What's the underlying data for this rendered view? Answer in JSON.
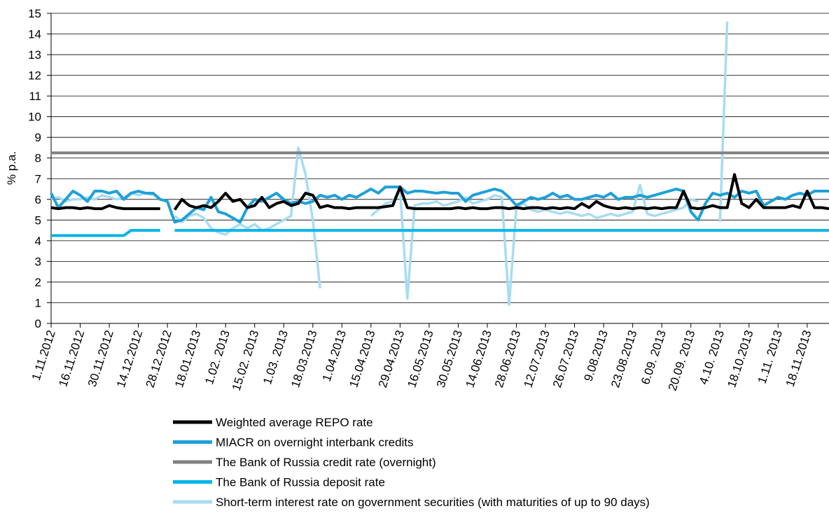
{
  "chart_data": {
    "type": "line",
    "ylabel": "% p.a.",
    "categories": [
      "1.11.2012",
      null,
      null,
      null,
      "16.11.2012",
      null,
      null,
      null,
      "30.11.2012",
      null,
      null,
      null,
      "14.12.2012",
      null,
      null,
      null,
      "28.12.2012",
      null,
      null,
      null,
      "18.01.2013",
      null,
      null,
      null,
      "1.02. 2013",
      null,
      null,
      null,
      "15.02. 2013",
      null,
      null,
      null,
      "1.03. 2013",
      null,
      null,
      null,
      "18.03.2013",
      null,
      null,
      null,
      "1.04.2013",
      null,
      null,
      null,
      "15.04.2013",
      null,
      null,
      null,
      "29.04.2013",
      null,
      null,
      null,
      "16.05.2013",
      null,
      null,
      null,
      "30.05.2013",
      null,
      null,
      null,
      "14.06.2013",
      null,
      null,
      null,
      "28.06.2013",
      null,
      null,
      null,
      "12.07.2013",
      null,
      null,
      null,
      "26.07.2013",
      null,
      null,
      null,
      "9.08.2013",
      null,
      null,
      null,
      "23.08.2013",
      null,
      null,
      null,
      "6.09. 2013",
      null,
      null,
      null,
      "20.09. 2013",
      null,
      null,
      null,
      "4.10. 2013",
      null,
      null,
      null,
      "18.10.2013",
      null,
      null,
      null,
      "1.11. 2013",
      null,
      null,
      null,
      "18.11.2013",
      null,
      null,
      null
    ],
    "series": [
      {
        "name": "Weighted average REPO rate",
        "color": "#000000",
        "values": [
          5.6,
          5.55,
          5.6,
          5.6,
          5.55,
          5.6,
          5.55,
          5.55,
          5.7,
          5.6,
          5.55,
          5.55,
          5.55,
          5.55,
          5.55,
          5.55,
          null,
          5.5,
          6.0,
          5.7,
          5.6,
          5.7,
          5.6,
          5.9,
          6.3,
          5.9,
          6.0,
          5.6,
          5.7,
          6.1,
          5.6,
          5.8,
          5.9,
          5.7,
          5.8,
          6.3,
          6.2,
          5.6,
          5.7,
          5.6,
          5.6,
          5.55,
          5.6,
          5.6,
          5.6,
          5.6,
          5.65,
          5.7,
          6.6,
          5.6,
          5.55,
          5.55,
          5.55,
          5.55,
          5.55,
          5.55,
          5.6,
          5.55,
          5.6,
          5.55,
          5.55,
          5.6,
          5.6,
          5.55,
          5.6,
          5.55,
          5.6,
          5.6,
          5.55,
          5.6,
          5.55,
          5.6,
          5.55,
          5.8,
          5.6,
          5.9,
          5.7,
          5.6,
          5.55,
          5.6,
          5.55,
          5.6,
          5.55,
          5.6,
          5.55,
          5.6,
          5.6,
          6.4,
          5.6,
          5.55,
          5.6,
          5.7,
          5.6,
          5.6,
          7.2,
          5.8,
          5.6,
          6.0,
          5.6,
          5.6,
          5.6,
          5.6,
          5.7,
          5.6,
          6.4,
          5.6,
          5.6,
          5.55
        ]
      },
      {
        "name": "MIACR on overnight interbank credits",
        "color": "#1fa0d8",
        "values": [
          6.3,
          5.6,
          6.0,
          6.4,
          6.2,
          5.9,
          6.4,
          6.4,
          6.3,
          6.4,
          6.0,
          6.3,
          6.4,
          6.3,
          6.3,
          6.0,
          5.9,
          4.9,
          5.0,
          5.3,
          5.6,
          5.5,
          6.1,
          5.4,
          5.3,
          5.1,
          4.9,
          5.6,
          6.0,
          5.9,
          6.1,
          6.3,
          6.0,
          5.8,
          5.9,
          5.8,
          5.9,
          6.2,
          6.1,
          6.2,
          6.0,
          6.2,
          6.1,
          6.3,
          6.5,
          6.3,
          6.6,
          6.6,
          6.6,
          6.3,
          6.4,
          6.4,
          6.35,
          6.3,
          6.35,
          6.3,
          6.3,
          5.9,
          6.2,
          6.3,
          6.4,
          6.5,
          6.4,
          6.1,
          5.7,
          5.9,
          6.1,
          6.0,
          6.1,
          6.3,
          6.1,
          6.2,
          6.0,
          6.0,
          6.1,
          6.2,
          6.1,
          6.3,
          6.0,
          6.1,
          6.1,
          6.2,
          6.1,
          6.2,
          6.3,
          6.4,
          6.5,
          6.4,
          5.4,
          5.0,
          5.8,
          6.3,
          6.2,
          6.3,
          6.1,
          6.4,
          6.3,
          6.4,
          5.7,
          5.9,
          6.1,
          6.0,
          6.2,
          6.3,
          6.2,
          6.4,
          6.4,
          6.4
        ]
      },
      {
        "name": "The Bank of Russia credit rate (overnight)",
        "color": "#808080",
        "values": [
          8.25,
          8.25,
          8.25,
          8.25,
          8.25,
          8.25,
          8.25,
          8.25,
          8.25,
          8.25,
          8.25,
          8.25,
          8.25,
          8.25,
          8.25,
          8.25,
          8.25,
          8.25,
          8.25,
          8.25,
          8.25,
          8.25,
          8.25,
          8.25,
          8.25,
          8.25,
          8.25,
          8.25,
          8.25,
          8.25,
          8.25,
          8.25,
          8.25,
          8.25,
          8.25,
          8.25,
          8.25,
          8.25,
          8.25,
          8.25,
          8.25,
          8.25,
          8.25,
          8.25,
          8.25,
          8.25,
          8.25,
          8.25,
          8.25,
          8.25,
          8.25,
          8.25,
          8.25,
          8.25,
          8.25,
          8.25,
          8.25,
          8.25,
          8.25,
          8.25,
          8.25,
          8.25,
          8.25,
          8.25,
          8.25,
          8.25,
          8.25,
          8.25,
          8.25,
          8.25,
          8.25,
          8.25,
          8.25,
          8.25,
          8.25,
          8.25,
          8.25,
          8.25,
          8.25,
          8.25,
          8.25,
          8.25,
          8.25,
          8.25,
          8.25,
          8.25,
          8.25,
          8.25,
          8.25,
          8.25,
          8.25,
          8.25,
          8.25,
          8.25,
          8.25,
          8.25,
          8.25,
          8.25,
          8.25,
          8.25,
          8.25,
          8.25,
          8.25,
          8.25,
          8.25,
          8.25,
          8.25,
          8.25
        ]
      },
      {
        "name": "The Bank of Russia deposit rate",
        "color": "#00b4e6",
        "values": [
          4.25,
          4.25,
          4.25,
          4.25,
          4.25,
          4.25,
          4.25,
          4.25,
          4.25,
          4.25,
          4.25,
          4.5,
          4.5,
          4.5,
          4.5,
          4.5,
          null,
          4.5,
          4.5,
          4.5,
          4.5,
          4.5,
          4.5,
          4.5,
          4.5,
          4.5,
          4.5,
          4.5,
          4.5,
          4.5,
          4.5,
          4.5,
          4.5,
          4.5,
          4.5,
          4.5,
          4.5,
          4.5,
          4.5,
          4.5,
          4.5,
          4.5,
          4.5,
          4.5,
          4.5,
          4.5,
          4.5,
          4.5,
          4.5,
          4.5,
          4.5,
          4.5,
          4.5,
          4.5,
          4.5,
          4.5,
          4.5,
          4.5,
          4.5,
          4.5,
          4.5,
          4.5,
          4.5,
          4.5,
          4.5,
          4.5,
          4.5,
          4.5,
          4.5,
          4.5,
          4.5,
          4.5,
          4.5,
          4.5,
          4.5,
          4.5,
          4.5,
          4.5,
          4.5,
          4.5,
          4.5,
          4.5,
          4.5,
          4.5,
          4.5,
          4.5,
          4.5,
          4.5,
          4.5,
          4.5,
          4.5,
          4.5,
          4.5,
          4.5,
          4.5,
          4.5,
          4.5,
          4.5,
          4.5,
          4.5,
          4.5,
          4.5,
          4.5,
          4.5,
          4.5,
          4.5,
          4.5,
          4.5
        ]
      },
      {
        "name": "Short-term interest rate on government securities (with maturities of up to 90 days)",
        "color": "#a8dcf2",
        "values": [
          6.0,
          6.1,
          5.9,
          6.0,
          6.0,
          6.1,
          6.0,
          6.2,
          6.1,
          6.0,
          6.1,
          6.3,
          6.2,
          6.3,
          6.2,
          null,
          null,
          5.2,
          4.9,
          5.2,
          5.3,
          5.1,
          4.6,
          4.4,
          4.3,
          4.6,
          4.8,
          4.6,
          4.8,
          4.5,
          4.6,
          4.8,
          5.0,
          5.2,
          8.5,
          7.2,
          5.0,
          1.7,
          null,
          null,
          null,
          null,
          null,
          null,
          5.2,
          5.5,
          5.8,
          5.9,
          6.5,
          1.2,
          5.7,
          5.8,
          5.8,
          5.9,
          5.7,
          5.8,
          5.9,
          6.1,
          5.8,
          5.9,
          6.0,
          6.2,
          6.1,
          0.9,
          5.6,
          5.8,
          5.5,
          5.4,
          5.5,
          5.4,
          5.3,
          5.4,
          5.3,
          5.2,
          5.3,
          5.1,
          5.2,
          5.3,
          5.2,
          5.3,
          5.4,
          6.7,
          5.3,
          5.2,
          5.3,
          5.4,
          5.5,
          5.6,
          6.0,
          5.9,
          null,
          null,
          4.9,
          14.6,
          null,
          null,
          null,
          null,
          null,
          null,
          null,
          null,
          null,
          null,
          null,
          null,
          null,
          null
        ]
      }
    ],
    "ylim": [
      0,
      15
    ],
    "yticks": [
      0,
      1,
      2,
      3,
      4,
      5,
      6,
      7,
      8,
      9,
      10,
      11,
      12,
      13,
      14,
      15
    ],
    "grid": true
  }
}
